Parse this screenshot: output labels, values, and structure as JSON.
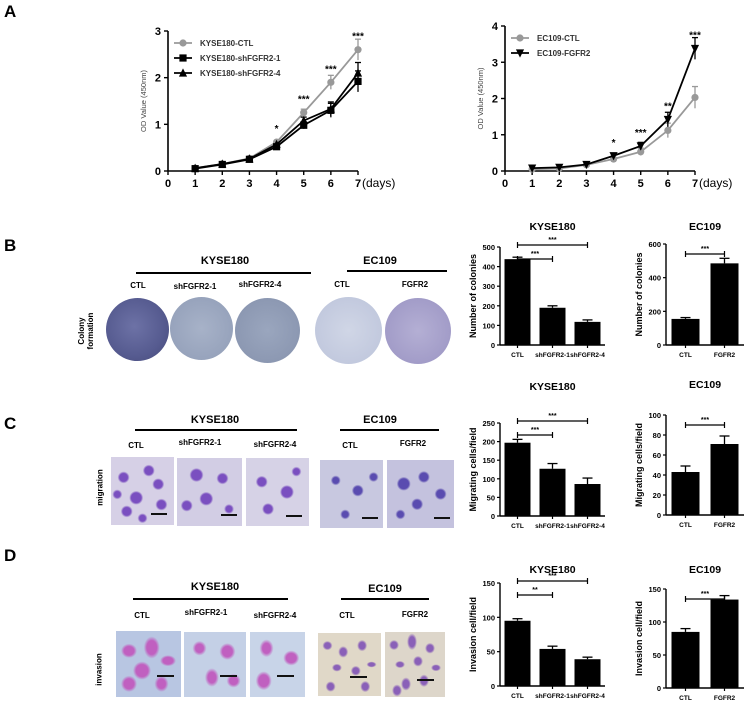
{
  "panels": {
    "A": {
      "letter": "A"
    },
    "B": {
      "letter": "B",
      "row_label": "Colony formation",
      "row_label_l1": "Colony",
      "row_label_l2": "formation"
    },
    "C": {
      "letter": "C",
      "row_label": "migration"
    },
    "D": {
      "letter": "D",
      "row_label": "invasion"
    }
  },
  "image_headers": {
    "kyse180": "KYSE180",
    "ec109": "EC109",
    "kyse_groups": [
      "CTL",
      "shFGFR2-1",
      "shFGFR2-4"
    ],
    "ec_groups": [
      "CTL",
      "FGFR2"
    ]
  },
  "colors": {
    "ctl_gray": "#999999",
    "black": "#000000",
    "colony_dark": "#5a5f96",
    "colony_light": "#b8c2d8",
    "migration_purple": "#7a4fc0",
    "invasion_pink": "#c060c0",
    "invasion_bg": "#b8c8e0",
    "ec_invasion_bg": "#ddd6c8"
  },
  "chart_data": [
    {
      "id": "A-left",
      "type": "line",
      "title": "",
      "xlabel": "(days)",
      "ylabel": "OD Value (450nm)",
      "x": [
        1,
        2,
        3,
        4,
        5,
        6,
        7
      ],
      "xticks": [
        "0",
        "1",
        "2",
        "3",
        "4",
        "5",
        "6",
        "7"
      ],
      "yticks": [
        "0",
        "1",
        "2",
        "3"
      ],
      "ylim": [
        0,
        3
      ],
      "xlim": [
        0,
        7
      ],
      "series": [
        {
          "name": "KYSE180-CTL",
          "marker": "circle",
          "color": "#999999",
          "values": [
            0.06,
            0.15,
            0.27,
            0.62,
            1.25,
            1.9,
            2.6
          ]
        },
        {
          "name": "KYSE180-shFGFR2-1",
          "marker": "square",
          "color": "#000000",
          "values": [
            0.05,
            0.14,
            0.25,
            0.52,
            0.98,
            1.3,
            1.92
          ]
        },
        {
          "name": "KYSE180-shFGFR2-4",
          "marker": "triangle",
          "color": "#000000",
          "values": [
            0.06,
            0.15,
            0.26,
            0.57,
            1.08,
            1.33,
            2.1
          ]
        }
      ],
      "annotations": [
        {
          "x": 4,
          "text": "*"
        },
        {
          "x": 5,
          "text": "***"
        },
        {
          "x": 6,
          "text": "***"
        },
        {
          "x": 7,
          "text": "***"
        }
      ],
      "legend_position": "upper-left"
    },
    {
      "id": "A-right",
      "type": "line",
      "title": "",
      "xlabel": "(days)",
      "ylabel": "OD Value (450nm)",
      "x": [
        1,
        2,
        3,
        4,
        5,
        6,
        7
      ],
      "xticks": [
        "0",
        "1",
        "2",
        "3",
        "4",
        "5",
        "6",
        "7"
      ],
      "yticks": [
        "0",
        "1",
        "2",
        "3",
        "4"
      ],
      "ylim": [
        0,
        4
      ],
      "xlim": [
        0,
        7
      ],
      "series": [
        {
          "name": "EC109-CTL",
          "marker": "circle",
          "color": "#999999",
          "values": [
            0.05,
            0.07,
            0.17,
            0.33,
            0.53,
            1.12,
            2.03
          ]
        },
        {
          "name": "EC109-FGFR2",
          "marker": "triangle-down",
          "color": "#000000",
          "values": [
            0.08,
            0.1,
            0.18,
            0.42,
            0.69,
            1.42,
            3.38
          ]
        }
      ],
      "annotations": [
        {
          "x": 4,
          "text": "*"
        },
        {
          "x": 5,
          "text": "***"
        },
        {
          "x": 6,
          "text": "**"
        },
        {
          "x": 7,
          "text": "***"
        }
      ],
      "legend_position": "upper-left"
    },
    {
      "id": "B-kyse",
      "type": "bar",
      "title": "KYSE180",
      "ylabel": "Number of colonies",
      "categories": [
        "CTL",
        "shFGFR2-1",
        "shFGFR2-4"
      ],
      "values": [
        438,
        190,
        118
      ],
      "errors": [
        10,
        10,
        10
      ],
      "yticks": [
        "0",
        "100",
        "200",
        "300",
        "400",
        "500"
      ],
      "ylim": [
        0,
        500
      ],
      "significance": [
        {
          "from": 0,
          "to": 1,
          "text": "***"
        },
        {
          "from": 0,
          "to": 2,
          "text": "***"
        }
      ]
    },
    {
      "id": "B-ec",
      "type": "bar",
      "title": "EC109",
      "ylabel": "Number of colonies",
      "categories": [
        "CTL",
        "FGFR2"
      ],
      "values": [
        155,
        485
      ],
      "errors": [
        8,
        30
      ],
      "yticks": [
        "0",
        "200",
        "400",
        "600"
      ],
      "ylim": [
        0,
        600
      ],
      "significance": [
        {
          "from": 0,
          "to": 1,
          "text": "***"
        }
      ]
    },
    {
      "id": "C-kyse",
      "type": "bar",
      "title": "KYSE180",
      "ylabel": "Migrating cells/field",
      "categories": [
        "CTL",
        "shFGFR2-1",
        "shFGFR2-4"
      ],
      "values": [
        197,
        127,
        86
      ],
      "errors": [
        9,
        14,
        16
      ],
      "yticks": [
        "0",
        "50",
        "100",
        "150",
        "200",
        "250"
      ],
      "ylim": [
        0,
        250
      ],
      "significance": [
        {
          "from": 0,
          "to": 1,
          "text": "***"
        },
        {
          "from": 0,
          "to": 2,
          "text": "***"
        }
      ]
    },
    {
      "id": "C-ec",
      "type": "bar",
      "title": "EC109",
      "ylabel": "Migrating cells/field",
      "categories": [
        "CTL",
        "FGFR2"
      ],
      "values": [
        43,
        71
      ],
      "errors": [
        6,
        8
      ],
      "yticks": [
        "0",
        "20",
        "40",
        "60",
        "80",
        "100"
      ],
      "ylim": [
        0,
        100
      ],
      "significance": [
        {
          "from": 0,
          "to": 1,
          "text": "***"
        }
      ]
    },
    {
      "id": "D-kyse",
      "type": "bar",
      "title": "KYSE180",
      "ylabel": "Invasion cell/field",
      "categories": [
        "CTL",
        "shFGFR2-1",
        "shFGFR2-4"
      ],
      "values": [
        95,
        54,
        39
      ],
      "errors": [
        3,
        4,
        3
      ],
      "yticks": [
        "0",
        "50",
        "100",
        "150"
      ],
      "ylim": [
        0,
        150
      ],
      "significance": [
        {
          "from": 0,
          "to": 1,
          "text": "**"
        },
        {
          "from": 0,
          "to": 2,
          "text": "***"
        }
      ]
    },
    {
      "id": "D-ec",
      "type": "bar",
      "title": "EC109",
      "ylabel": "Invasion cell/field",
      "categories": [
        "CTL",
        "FGFR2"
      ],
      "values": [
        85,
        134
      ],
      "errors": [
        5,
        6
      ],
      "yticks": [
        "0",
        "50",
        "100",
        "150"
      ],
      "ylim": [
        0,
        150
      ],
      "significance": [
        {
          "from": 0,
          "to": 1,
          "text": "***"
        }
      ]
    }
  ]
}
